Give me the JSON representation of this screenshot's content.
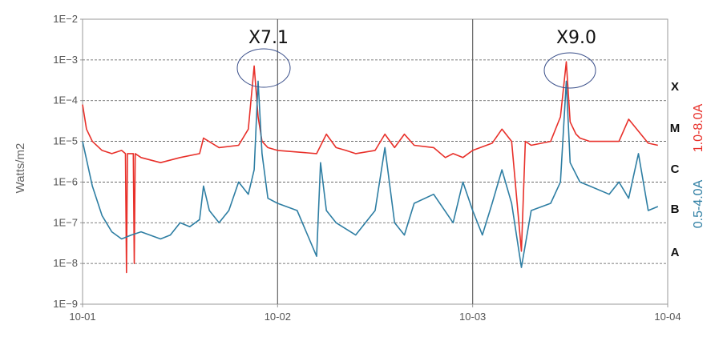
{
  "chart_data": {
    "type": "line",
    "title": "",
    "xlabel": "",
    "ylabel": "Watts/m2",
    "y_scale": "log",
    "ylim": [
      1e-09,
      0.01
    ],
    "xlim": [
      "10-01",
      "10-04"
    ],
    "x_ticks": [
      "10-01",
      "10-02",
      "10-03",
      "10-04"
    ],
    "y_ticks": [
      "1E−9",
      "1E−8",
      "1E−7",
      "1E−6",
      "1E−5",
      "1E−4",
      "1E−3",
      "1E−2"
    ],
    "grid": true,
    "flare_classes": [
      "X",
      "M",
      "C",
      "B",
      "A"
    ],
    "right_axis_labels": [
      {
        "text": "1.0-8.0A",
        "color": "#e8302a"
      },
      {
        "text": "0.5-4.0A",
        "color": "#2e7ea3"
      }
    ],
    "annotations": [
      "X7.1",
      "X9.0"
    ],
    "series": [
      {
        "name": "1.0-8.0A",
        "color": "#e8302a",
        "x": [
          0.0,
          0.02,
          0.05,
          0.1,
          0.15,
          0.2,
          0.22,
          0.225,
          0.23,
          0.25,
          0.26,
          0.265,
          0.27,
          0.3,
          0.4,
          0.5,
          0.6,
          0.62,
          0.7,
          0.8,
          0.85,
          0.88,
          0.9,
          0.92,
          0.95,
          1.0,
          1.2,
          1.25,
          1.3,
          1.35,
          1.4,
          1.5,
          1.55,
          1.6,
          1.65,
          1.7,
          1.8,
          1.86,
          1.9,
          1.95,
          2.0,
          2.1,
          2.15,
          2.2,
          2.25,
          2.27,
          2.3,
          2.4,
          2.45,
          2.48,
          2.5,
          2.53,
          2.55,
          2.6,
          2.7,
          2.75,
          2.8,
          2.9,
          2.95
        ],
        "y": [
          8e-05,
          2e-05,
          1e-05,
          6e-06,
          5e-06,
          6e-06,
          5e-06,
          6e-09,
          5e-06,
          5e-06,
          5e-06,
          1e-08,
          5e-06,
          4e-06,
          3e-06,
          4e-06,
          5e-06,
          1.2e-05,
          7e-06,
          8e-06,
          2e-05,
          0.00071,
          4e-05,
          1e-05,
          7e-06,
          6e-06,
          5e-06,
          1.5e-05,
          7e-06,
          6e-06,
          5e-06,
          6e-06,
          1.5e-05,
          7e-06,
          1.5e-05,
          8e-06,
          7e-06,
          4e-06,
          5e-06,
          4e-06,
          6e-06,
          9e-06,
          2e-05,
          1e-05,
          2e-08,
          1e-05,
          8e-06,
          1e-05,
          4e-05,
          0.0009,
          3e-05,
          1.5e-05,
          1.2e-05,
          1e-05,
          1e-05,
          1e-05,
          3.5e-05,
          9e-06,
          8e-06
        ]
      },
      {
        "name": "0.5-4.0A",
        "color": "#2e7ea3",
        "x": [
          0.0,
          0.05,
          0.1,
          0.15,
          0.2,
          0.25,
          0.3,
          0.4,
          0.45,
          0.5,
          0.55,
          0.6,
          0.62,
          0.65,
          0.7,
          0.75,
          0.8,
          0.85,
          0.88,
          0.9,
          0.92,
          0.95,
          1.0,
          1.1,
          1.2,
          1.22,
          1.25,
          1.3,
          1.4,
          1.5,
          1.55,
          1.6,
          1.65,
          1.7,
          1.8,
          1.9,
          1.95,
          2.0,
          2.05,
          2.1,
          2.15,
          2.2,
          2.25,
          2.3,
          2.4,
          2.45,
          2.48,
          2.5,
          2.55,
          2.6,
          2.7,
          2.75,
          2.8,
          2.85,
          2.9,
          2.95
        ],
        "y": [
          1e-05,
          8e-07,
          1.5e-07,
          6e-08,
          4e-08,
          5e-08,
          6e-08,
          4e-08,
          5e-08,
          1e-07,
          8e-08,
          1.2e-07,
          8e-07,
          2e-07,
          1e-07,
          2e-07,
          1e-06,
          5e-07,
          2e-06,
          0.0003,
          5e-06,
          4e-07,
          3e-07,
          2e-07,
          1.5e-08,
          3e-06,
          2e-07,
          1e-07,
          5e-08,
          2e-07,
          7e-06,
          1e-07,
          5e-08,
          3e-07,
          5e-07,
          1e-07,
          1e-06,
          2e-07,
          5e-08,
          3e-07,
          2e-06,
          3e-07,
          8e-09,
          2e-07,
          3e-07,
          1e-06,
          0.0003,
          3e-06,
          1e-06,
          8e-07,
          5e-07,
          1e-06,
          4e-07,
          5e-06,
          2e-07,
          2.5e-07
        ]
      }
    ]
  }
}
